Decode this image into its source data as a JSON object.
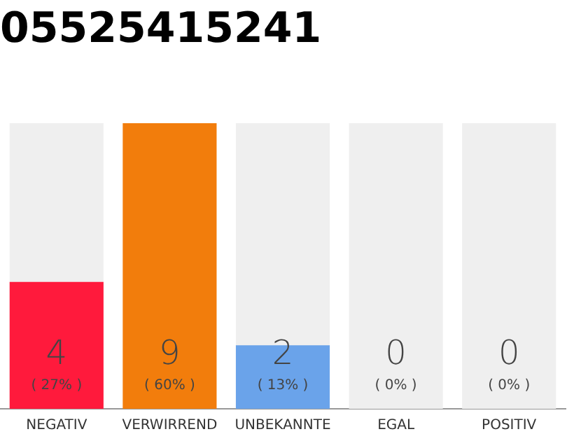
{
  "chart_data": {
    "type": "bar",
    "title": "05525415241",
    "categories": [
      "NEGATIV",
      "VERWIRREND",
      "UNBEKANNTE",
      "EGAL",
      "POSITIV"
    ],
    "values": [
      4,
      9,
      2,
      0,
      0
    ],
    "colors": [
      "#ff1a3c",
      "#f27d0c",
      "#6aa3ea",
      "#cccccc",
      "#cccccc"
    ],
    "data_labels": true,
    "annotations": [
      "( 27% )",
      "( 60% )",
      "( 13% )",
      "( 0% )",
      "( 0% )"
    ],
    "bands": [
      {
        "axis": "x",
        "from": "NEGATIV",
        "to": "NEGATIV",
        "color": "#efefef"
      },
      {
        "axis": "x",
        "from": "UNBEKANNTE",
        "to": "UNBEKANNTE",
        "color": "#efefef"
      },
      {
        "axis": "x",
        "from": "EGAL",
        "to": "EGAL",
        "color": "#efefef"
      },
      {
        "axis": "x",
        "from": "POSITIV",
        "to": "POSITIV",
        "color": "#efefef"
      }
    ],
    "ylim": [
      0,
      9
    ],
    "grid": false,
    "legend": false
  }
}
